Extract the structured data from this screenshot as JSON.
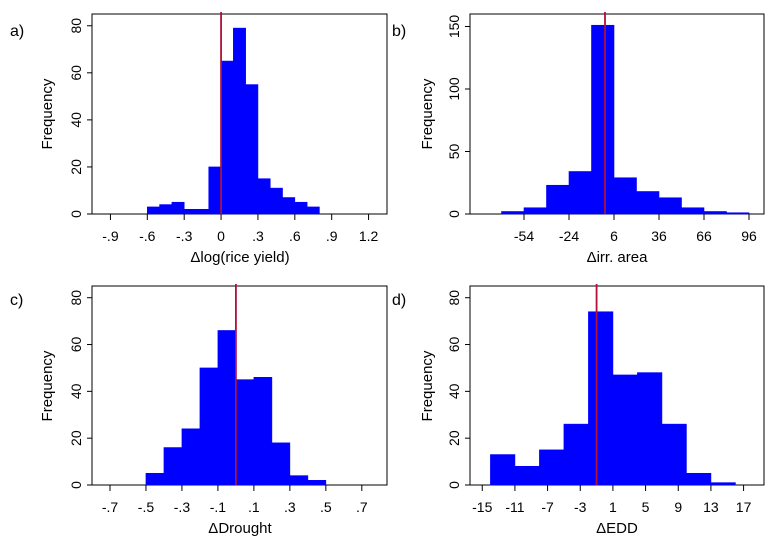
{
  "figure": {
    "bar_color": "#0000ff",
    "ref_line_color": "#b0103a",
    "frame_color": "#000000"
  },
  "chart_data": [
    {
      "panel_label": "a)",
      "type": "histogram",
      "xlabel": "Δlog(rice yield)",
      "ylabel": "Frequency",
      "xlim": [
        -1.05,
        1.35
      ],
      "ylim": [
        0,
        85
      ],
      "x_ticks": [
        -0.9,
        -0.6,
        -0.3,
        0,
        0.3,
        0.6,
        0.9,
        1.2
      ],
      "x_tick_labels": [
        "-.9",
        "-.6",
        "-.3",
        "0",
        ".3",
        ".6",
        ".9",
        "1.2"
      ],
      "y_ticks": [
        0,
        20,
        40,
        60,
        80
      ],
      "y_tick_labels": [
        "0",
        "20",
        "40",
        "60",
        "80"
      ],
      "reference_line": 0,
      "bins": [
        {
          "start": -0.6,
          "end": -0.5,
          "count": 3
        },
        {
          "start": -0.5,
          "end": -0.4,
          "count": 4
        },
        {
          "start": -0.4,
          "end": -0.3,
          "count": 5
        },
        {
          "start": -0.3,
          "end": -0.2,
          "count": 2
        },
        {
          "start": -0.2,
          "end": -0.1,
          "count": 2
        },
        {
          "start": -0.1,
          "end": 0.0,
          "count": 20
        },
        {
          "start": 0.0,
          "end": 0.1,
          "count": 65
        },
        {
          "start": 0.1,
          "end": 0.2,
          "count": 79
        },
        {
          "start": 0.2,
          "end": 0.3,
          "count": 55
        },
        {
          "start": 0.3,
          "end": 0.4,
          "count": 15
        },
        {
          "start": 0.4,
          "end": 0.5,
          "count": 11
        },
        {
          "start": 0.5,
          "end": 0.6,
          "count": 7
        },
        {
          "start": 0.6,
          "end": 0.7,
          "count": 5
        },
        {
          "start": 0.7,
          "end": 0.8,
          "count": 3
        }
      ]
    },
    {
      "panel_label": "b)",
      "type": "histogram",
      "xlabel": "Δirr. area",
      "ylabel": "Frequency",
      "xlim": [
        -90,
        106
      ],
      "ylim": [
        0,
        160
      ],
      "x_ticks": [
        -54,
        -24,
        6,
        36,
        66,
        96
      ],
      "x_tick_labels": [
        "-54",
        "-24",
        "6",
        "36",
        "66",
        "96"
      ],
      "y_ticks": [
        0,
        50,
        100,
        150
      ],
      "y_tick_labels": [
        "0",
        "50",
        "100",
        "150"
      ],
      "reference_line": 0,
      "bins": [
        {
          "start": -69,
          "end": -54,
          "count": 2
        },
        {
          "start": -54,
          "end": -39,
          "count": 5
        },
        {
          "start": -39,
          "end": -24,
          "count": 23
        },
        {
          "start": -24,
          "end": -9,
          "count": 34
        },
        {
          "start": -9,
          "end": 6,
          "count": 151
        },
        {
          "start": 6,
          "end": 21,
          "count": 29
        },
        {
          "start": 21,
          "end": 36,
          "count": 18
        },
        {
          "start": 36,
          "end": 51,
          "count": 13
        },
        {
          "start": 51,
          "end": 66,
          "count": 5
        },
        {
          "start": 66,
          "end": 81,
          "count": 2
        },
        {
          "start": 81,
          "end": 96,
          "count": 1
        }
      ]
    },
    {
      "panel_label": "c)",
      "type": "histogram",
      "xlabel": "ΔDrought",
      "ylabel": "Frequency",
      "xlim": [
        -0.8,
        0.84
      ],
      "ylim": [
        0,
        85
      ],
      "x_ticks": [
        -0.7,
        -0.5,
        -0.3,
        -0.1,
        0.1,
        0.3,
        0.5,
        0.7
      ],
      "x_tick_labels": [
        "-.7",
        "-.5",
        "-.3",
        "-.1",
        ".1",
        ".3",
        ".5",
        ".7"
      ],
      "y_ticks": [
        0,
        20,
        40,
        60,
        80
      ],
      "y_tick_labels": [
        "0",
        "20",
        "40",
        "60",
        "80"
      ],
      "reference_line": 0,
      "bins": [
        {
          "start": -0.5,
          "end": -0.4,
          "count": 5
        },
        {
          "start": -0.4,
          "end": -0.3,
          "count": 16
        },
        {
          "start": -0.3,
          "end": -0.2,
          "count": 24
        },
        {
          "start": -0.2,
          "end": -0.1,
          "count": 50
        },
        {
          "start": -0.1,
          "end": 0.0,
          "count": 66
        },
        {
          "start": 0.0,
          "end": 0.1,
          "count": 45
        },
        {
          "start": 0.1,
          "end": 0.2,
          "count": 46
        },
        {
          "start": 0.2,
          "end": 0.3,
          "count": 18
        },
        {
          "start": 0.3,
          "end": 0.4,
          "count": 4
        },
        {
          "start": 0.4,
          "end": 0.5,
          "count": 2
        }
      ]
    },
    {
      "panel_label": "d)",
      "type": "histogram",
      "xlabel": "ΔEDD",
      "ylabel": "Frequency",
      "xlim": [
        -16.5,
        19.5
      ],
      "ylim": [
        0,
        85
      ],
      "x_ticks": [
        -15,
        -11,
        -7,
        -3,
        1,
        5,
        9,
        13,
        17
      ],
      "x_tick_labels": [
        "-15",
        "-11",
        "-7",
        "-3",
        "1",
        "5",
        "9",
        "13",
        "17"
      ],
      "y_ticks": [
        0,
        20,
        40,
        60,
        80
      ],
      "y_tick_labels": [
        "0",
        "20",
        "40",
        "60",
        "80"
      ],
      "reference_line": -1,
      "bins": [
        {
          "start": -14,
          "end": -11,
          "count": 13
        },
        {
          "start": -11,
          "end": -8,
          "count": 8
        },
        {
          "start": -8,
          "end": -5,
          "count": 15
        },
        {
          "start": -5,
          "end": -2,
          "count": 26
        },
        {
          "start": -2,
          "end": 1,
          "count": 74
        },
        {
          "start": 1,
          "end": 4,
          "count": 47
        },
        {
          "start": 4,
          "end": 7,
          "count": 48
        },
        {
          "start": 7,
          "end": 10,
          "count": 26
        },
        {
          "start": 10,
          "end": 13,
          "count": 5
        },
        {
          "start": 13,
          "end": 16,
          "count": 1
        }
      ]
    }
  ]
}
